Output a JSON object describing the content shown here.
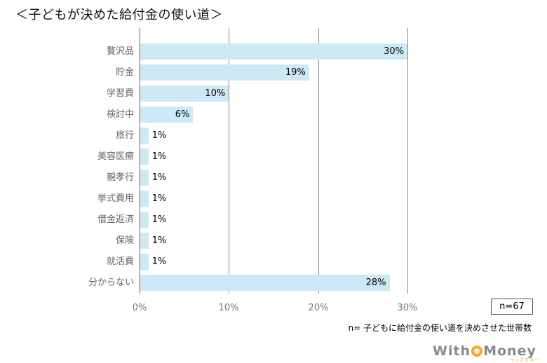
{
  "title": "＜子どもが決めた給付金の使い道＞",
  "chart_data": {
    "type": "bar",
    "orientation": "horizontal",
    "title": "＜子どもが決めた給付金の使い道＞",
    "categories": [
      "贅沢品",
      "貯金",
      "学習費",
      "検討中",
      "旅行",
      "美容医療",
      "親孝行",
      "挙式費用",
      "借金返済",
      "保険",
      "就活費",
      "分からない"
    ],
    "values": [
      30,
      19,
      10,
      6,
      1,
      1,
      1,
      1,
      1,
      1,
      1,
      28
    ],
    "labels": [
      "30%",
      "19%",
      "10%",
      "6%",
      "1%",
      "1%",
      "1%",
      "1%",
      "1%",
      "1%",
      "1%",
      "28%"
    ],
    "xlabel": "",
    "ylabel": "",
    "xlim": [
      0,
      30
    ],
    "xticks": [
      "0%",
      "10%",
      "20%",
      "30%"
    ],
    "grid": true,
    "bar_color": "#cde9f5",
    "legend": null,
    "annotations": [
      "n=67",
      "n= 子どもに給付金の使い道を決めさせた世帯数"
    ]
  },
  "sample": {
    "n_label": "n=67",
    "note": "n= 子どもに給付金の使い道を決めさせた世帯数"
  },
  "logo": {
    "text_left": "With",
    "text_right": "Money",
    "sub": "ウィズマネー"
  }
}
